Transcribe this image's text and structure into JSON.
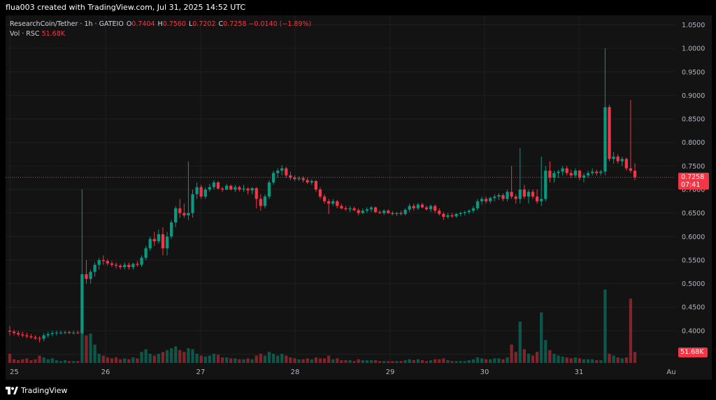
{
  "header": {
    "attribution": "flua003 created with TradingView.com, Jul 31, 2025 14:52 UTC"
  },
  "legend": {
    "symbol": "ResearchCoin/Tether · 1h · GATEIO",
    "o_label": "O",
    "o_value": "0.7404",
    "h_label": "H",
    "h_value": "0.7560",
    "l_label": "L",
    "l_value": "0.7202",
    "c_label": "C",
    "c_value": "0.7258",
    "change": "−0.0140 (−1.89%)",
    "vol_label": "Vol · RSC",
    "vol_value": "51.68K"
  },
  "price_badge": {
    "price": "0.7258",
    "countdown": "07:41"
  },
  "volume_badge": {
    "value": "51.68K"
  },
  "footer": {
    "logo_text": "TradingView"
  },
  "colors": {
    "up": "#089981",
    "down": "#f23645",
    "background": "#131313",
    "grid": "#1f1f1f"
  },
  "chart_data": {
    "type": "candlestick",
    "y_ticks": [
      "1.0500",
      "1.0000",
      "0.9500",
      "0.9000",
      "0.8500",
      "0.8000",
      "0.7500",
      "0.7000",
      "0.6500",
      "0.6000",
      "0.5500",
      "0.5000",
      "0.4500",
      "0.4000",
      "0.3500"
    ],
    "x_ticks": [
      "25",
      "26",
      "27",
      "28",
      "29",
      "30",
      "31",
      "Au"
    ],
    "ylim": [
      0.33,
      1.07
    ],
    "last_price": 0.7258,
    "grid": true,
    "series": [
      {
        "o": 0.4,
        "h": 0.41,
        "l": 0.39,
        "c": 0.398,
        "v": 10
      },
      {
        "o": 0.398,
        "h": 0.402,
        "l": 0.39,
        "c": 0.395,
        "v": 4
      },
      {
        "o": 0.395,
        "h": 0.4,
        "l": 0.388,
        "c": 0.392,
        "v": 3
      },
      {
        "o": 0.392,
        "h": 0.398,
        "l": 0.386,
        "c": 0.39,
        "v": 4
      },
      {
        "o": 0.39,
        "h": 0.396,
        "l": 0.384,
        "c": 0.388,
        "v": 5
      },
      {
        "o": 0.388,
        "h": 0.393,
        "l": 0.383,
        "c": 0.386,
        "v": 3
      },
      {
        "o": 0.386,
        "h": 0.39,
        "l": 0.38,
        "c": 0.384,
        "v": 4
      },
      {
        "o": 0.384,
        "h": 0.388,
        "l": 0.375,
        "c": 0.383,
        "v": 8
      },
      {
        "o": 0.383,
        "h": 0.395,
        "l": 0.378,
        "c": 0.39,
        "v": 6
      },
      {
        "o": 0.39,
        "h": 0.398,
        "l": 0.385,
        "c": 0.393,
        "v": 4
      },
      {
        "o": 0.393,
        "h": 0.4,
        "l": 0.388,
        "c": 0.395,
        "v": 5
      },
      {
        "o": 0.395,
        "h": 0.4,
        "l": 0.39,
        "c": 0.396,
        "v": 3
      },
      {
        "o": 0.396,
        "h": 0.4,
        "l": 0.392,
        "c": 0.396,
        "v": 2
      },
      {
        "o": 0.396,
        "h": 0.4,
        "l": 0.392,
        "c": 0.397,
        "v": 3
      },
      {
        "o": 0.397,
        "h": 0.4,
        "l": 0.393,
        "c": 0.395,
        "v": 2
      },
      {
        "o": 0.395,
        "h": 0.4,
        "l": 0.392,
        "c": 0.396,
        "v": 2
      },
      {
        "o": 0.396,
        "h": 0.4,
        "l": 0.393,
        "c": 0.395,
        "v": 2
      },
      {
        "o": 0.395,
        "h": 0.7,
        "l": 0.392,
        "c": 0.52,
        "v": 40
      },
      {
        "o": 0.52,
        "h": 0.55,
        "l": 0.5,
        "c": 0.51,
        "v": 30
      },
      {
        "o": 0.51,
        "h": 0.53,
        "l": 0.5,
        "c": 0.525,
        "v": 32
      },
      {
        "o": 0.525,
        "h": 0.545,
        "l": 0.515,
        "c": 0.54,
        "v": 20
      },
      {
        "o": 0.54,
        "h": 0.555,
        "l": 0.53,
        "c": 0.55,
        "v": 10
      },
      {
        "o": 0.55,
        "h": 0.56,
        "l": 0.54,
        "c": 0.548,
        "v": 8
      },
      {
        "o": 0.548,
        "h": 0.552,
        "l": 0.538,
        "c": 0.543,
        "v": 6
      },
      {
        "o": 0.543,
        "h": 0.548,
        "l": 0.535,
        "c": 0.54,
        "v": 5
      },
      {
        "o": 0.54,
        "h": 0.545,
        "l": 0.532,
        "c": 0.538,
        "v": 6
      },
      {
        "o": 0.538,
        "h": 0.542,
        "l": 0.53,
        "c": 0.535,
        "v": 4
      },
      {
        "o": 0.535,
        "h": 0.545,
        "l": 0.53,
        "c": 0.54,
        "v": 5
      },
      {
        "o": 0.54,
        "h": 0.545,
        "l": 0.53,
        "c": 0.535,
        "v": 4
      },
      {
        "o": 0.535,
        "h": 0.545,
        "l": 0.53,
        "c": 0.542,
        "v": 6
      },
      {
        "o": 0.542,
        "h": 0.548,
        "l": 0.536,
        "c": 0.54,
        "v": 5
      },
      {
        "o": 0.54,
        "h": 0.56,
        "l": 0.536,
        "c": 0.555,
        "v": 12
      },
      {
        "o": 0.555,
        "h": 0.58,
        "l": 0.55,
        "c": 0.575,
        "v": 15
      },
      {
        "o": 0.575,
        "h": 0.6,
        "l": 0.57,
        "c": 0.595,
        "v": 10
      },
      {
        "o": 0.595,
        "h": 0.61,
        "l": 0.58,
        "c": 0.59,
        "v": 8
      },
      {
        "o": 0.59,
        "h": 0.615,
        "l": 0.585,
        "c": 0.605,
        "v": 10
      },
      {
        "o": 0.605,
        "h": 0.62,
        "l": 0.56,
        "c": 0.575,
        "v": 12
      },
      {
        "o": 0.575,
        "h": 0.61,
        "l": 0.56,
        "c": 0.6,
        "v": 14
      },
      {
        "o": 0.6,
        "h": 0.635,
        "l": 0.595,
        "c": 0.63,
        "v": 16
      },
      {
        "o": 0.63,
        "h": 0.665,
        "l": 0.62,
        "c": 0.66,
        "v": 18
      },
      {
        "o": 0.66,
        "h": 0.68,
        "l": 0.64,
        "c": 0.65,
        "v": 14
      },
      {
        "o": 0.65,
        "h": 0.67,
        "l": 0.64,
        "c": 0.645,
        "v": 12
      },
      {
        "o": 0.645,
        "h": 0.76,
        "l": 0.635,
        "c": 0.65,
        "v": 16
      },
      {
        "o": 0.65,
        "h": 0.7,
        "l": 0.64,
        "c": 0.69,
        "v": 15
      },
      {
        "o": 0.69,
        "h": 0.715,
        "l": 0.68,
        "c": 0.705,
        "v": 10
      },
      {
        "o": 0.705,
        "h": 0.71,
        "l": 0.68,
        "c": 0.685,
        "v": 8
      },
      {
        "o": 0.685,
        "h": 0.705,
        "l": 0.68,
        "c": 0.7,
        "v": 7
      },
      {
        "o": 0.7,
        "h": 0.712,
        "l": 0.695,
        "c": 0.705,
        "v": 8
      },
      {
        "o": 0.705,
        "h": 0.72,
        "l": 0.7,
        "c": 0.715,
        "v": 10
      },
      {
        "o": 0.715,
        "h": 0.718,
        "l": 0.7,
        "c": 0.702,
        "v": 9
      },
      {
        "o": 0.702,
        "h": 0.705,
        "l": 0.695,
        "c": 0.7,
        "v": 6
      },
      {
        "o": 0.7,
        "h": 0.712,
        "l": 0.698,
        "c": 0.708,
        "v": 6
      },
      {
        "o": 0.708,
        "h": 0.71,
        "l": 0.698,
        "c": 0.7,
        "v": 5
      },
      {
        "o": 0.7,
        "h": 0.71,
        "l": 0.695,
        "c": 0.705,
        "v": 5
      },
      {
        "o": 0.705,
        "h": 0.708,
        "l": 0.696,
        "c": 0.7,
        "v": 4
      },
      {
        "o": 0.7,
        "h": 0.71,
        "l": 0.695,
        "c": 0.702,
        "v": 4
      },
      {
        "o": 0.702,
        "h": 0.705,
        "l": 0.69,
        "c": 0.698,
        "v": 5
      },
      {
        "o": 0.698,
        "h": 0.705,
        "l": 0.69,
        "c": 0.703,
        "v": 4
      },
      {
        "o": 0.703,
        "h": 0.705,
        "l": 0.66,
        "c": 0.68,
        "v": 8
      },
      {
        "o": 0.68,
        "h": 0.69,
        "l": 0.655,
        "c": 0.665,
        "v": 10
      },
      {
        "o": 0.665,
        "h": 0.69,
        "l": 0.66,
        "c": 0.685,
        "v": 8
      },
      {
        "o": 0.685,
        "h": 0.72,
        "l": 0.68,
        "c": 0.715,
        "v": 12
      },
      {
        "o": 0.715,
        "h": 0.74,
        "l": 0.71,
        "c": 0.735,
        "v": 10
      },
      {
        "o": 0.735,
        "h": 0.745,
        "l": 0.725,
        "c": 0.74,
        "v": 8
      },
      {
        "o": 0.74,
        "h": 0.752,
        "l": 0.73,
        "c": 0.745,
        "v": 10
      },
      {
        "o": 0.745,
        "h": 0.748,
        "l": 0.725,
        "c": 0.73,
        "v": 8
      },
      {
        "o": 0.73,
        "h": 0.738,
        "l": 0.72,
        "c": 0.725,
        "v": 6
      },
      {
        "o": 0.725,
        "h": 0.73,
        "l": 0.718,
        "c": 0.722,
        "v": 5
      },
      {
        "o": 0.722,
        "h": 0.728,
        "l": 0.718,
        "c": 0.724,
        "v": 4
      },
      {
        "o": 0.724,
        "h": 0.728,
        "l": 0.715,
        "c": 0.72,
        "v": 4
      },
      {
        "o": 0.72,
        "h": 0.725,
        "l": 0.712,
        "c": 0.715,
        "v": 5
      },
      {
        "o": 0.715,
        "h": 0.722,
        "l": 0.71,
        "c": 0.718,
        "v": 4
      },
      {
        "o": 0.718,
        "h": 0.72,
        "l": 0.695,
        "c": 0.7,
        "v": 6
      },
      {
        "o": 0.7,
        "h": 0.705,
        "l": 0.68,
        "c": 0.685,
        "v": 5
      },
      {
        "o": 0.685,
        "h": 0.69,
        "l": 0.67,
        "c": 0.675,
        "v": 5
      },
      {
        "o": 0.675,
        "h": 0.68,
        "l": 0.648,
        "c": 0.67,
        "v": 8
      },
      {
        "o": 0.67,
        "h": 0.68,
        "l": 0.665,
        "c": 0.675,
        "v": 4
      },
      {
        "o": 0.675,
        "h": 0.678,
        "l": 0.66,
        "c": 0.665,
        "v": 5
      },
      {
        "o": 0.665,
        "h": 0.67,
        "l": 0.658,
        "c": 0.66,
        "v": 3
      },
      {
        "o": 0.66,
        "h": 0.665,
        "l": 0.655,
        "c": 0.658,
        "v": 3
      },
      {
        "o": 0.658,
        "h": 0.665,
        "l": 0.652,
        "c": 0.66,
        "v": 3
      },
      {
        "o": 0.66,
        "h": 0.664,
        "l": 0.654,
        "c": 0.656,
        "v": 2
      },
      {
        "o": 0.656,
        "h": 0.66,
        "l": 0.645,
        "c": 0.65,
        "v": 4
      },
      {
        "o": 0.65,
        "h": 0.66,
        "l": 0.648,
        "c": 0.655,
        "v": 3
      },
      {
        "o": 0.655,
        "h": 0.662,
        "l": 0.65,
        "c": 0.658,
        "v": 3
      },
      {
        "o": 0.658,
        "h": 0.665,
        "l": 0.652,
        "c": 0.662,
        "v": 3
      },
      {
        "o": 0.662,
        "h": 0.664,
        "l": 0.65,
        "c": 0.652,
        "v": 3
      },
      {
        "o": 0.652,
        "h": 0.656,
        "l": 0.648,
        "c": 0.65,
        "v": 2
      },
      {
        "o": 0.65,
        "h": 0.658,
        "l": 0.646,
        "c": 0.655,
        "v": 2
      },
      {
        "o": 0.655,
        "h": 0.658,
        "l": 0.648,
        "c": 0.65,
        "v": 2
      },
      {
        "o": 0.65,
        "h": 0.654,
        "l": 0.645,
        "c": 0.648,
        "v": 2
      },
      {
        "o": 0.648,
        "h": 0.652,
        "l": 0.644,
        "c": 0.65,
        "v": 2
      },
      {
        "o": 0.65,
        "h": 0.655,
        "l": 0.645,
        "c": 0.648,
        "v": 2
      },
      {
        "o": 0.648,
        "h": 0.66,
        "l": 0.645,
        "c": 0.657,
        "v": 3
      },
      {
        "o": 0.657,
        "h": 0.67,
        "l": 0.652,
        "c": 0.665,
        "v": 4
      },
      {
        "o": 0.665,
        "h": 0.67,
        "l": 0.655,
        "c": 0.66,
        "v": 3
      },
      {
        "o": 0.66,
        "h": 0.672,
        "l": 0.656,
        "c": 0.668,
        "v": 4
      },
      {
        "o": 0.668,
        "h": 0.672,
        "l": 0.66,
        "c": 0.662,
        "v": 3
      },
      {
        "o": 0.662,
        "h": 0.666,
        "l": 0.655,
        "c": 0.658,
        "v": 2
      },
      {
        "o": 0.658,
        "h": 0.668,
        "l": 0.652,
        "c": 0.665,
        "v": 3
      },
      {
        "o": 0.665,
        "h": 0.668,
        "l": 0.65,
        "c": 0.655,
        "v": 4
      },
      {
        "o": 0.655,
        "h": 0.66,
        "l": 0.645,
        "c": 0.648,
        "v": 4
      },
      {
        "o": 0.648,
        "h": 0.652,
        "l": 0.635,
        "c": 0.642,
        "v": 5
      },
      {
        "o": 0.642,
        "h": 0.65,
        "l": 0.638,
        "c": 0.645,
        "v": 3
      },
      {
        "o": 0.645,
        "h": 0.65,
        "l": 0.64,
        "c": 0.643,
        "v": 2
      },
      {
        "o": 0.643,
        "h": 0.65,
        "l": 0.64,
        "c": 0.648,
        "v": 2
      },
      {
        "o": 0.648,
        "h": 0.653,
        "l": 0.643,
        "c": 0.65,
        "v": 2
      },
      {
        "o": 0.65,
        "h": 0.655,
        "l": 0.645,
        "c": 0.652,
        "v": 2
      },
      {
        "o": 0.652,
        "h": 0.658,
        "l": 0.648,
        "c": 0.655,
        "v": 3
      },
      {
        "o": 0.655,
        "h": 0.665,
        "l": 0.65,
        "c": 0.66,
        "v": 4
      },
      {
        "o": 0.66,
        "h": 0.68,
        "l": 0.655,
        "c": 0.675,
        "v": 6
      },
      {
        "o": 0.675,
        "h": 0.685,
        "l": 0.668,
        "c": 0.68,
        "v": 5
      },
      {
        "o": 0.68,
        "h": 0.685,
        "l": 0.67,
        "c": 0.675,
        "v": 4
      },
      {
        "o": 0.675,
        "h": 0.685,
        "l": 0.67,
        "c": 0.682,
        "v": 4
      },
      {
        "o": 0.682,
        "h": 0.69,
        "l": 0.675,
        "c": 0.685,
        "v": 5
      },
      {
        "o": 0.685,
        "h": 0.692,
        "l": 0.678,
        "c": 0.688,
        "v": 5
      },
      {
        "o": 0.688,
        "h": 0.692,
        "l": 0.675,
        "c": 0.68,
        "v": 4
      },
      {
        "o": 0.68,
        "h": 0.7,
        "l": 0.675,
        "c": 0.695,
        "v": 6
      },
      {
        "o": 0.695,
        "h": 0.75,
        "l": 0.68,
        "c": 0.685,
        "v": 20
      },
      {
        "o": 0.685,
        "h": 0.69,
        "l": 0.67,
        "c": 0.68,
        "v": 12
      },
      {
        "o": 0.68,
        "h": 0.788,
        "l": 0.67,
        "c": 0.7,
        "v": 45
      },
      {
        "o": 0.7,
        "h": 0.71,
        "l": 0.68,
        "c": 0.685,
        "v": 15
      },
      {
        "o": 0.685,
        "h": 0.7,
        "l": 0.67,
        "c": 0.695,
        "v": 10
      },
      {
        "o": 0.695,
        "h": 0.7,
        "l": 0.68,
        "c": 0.685,
        "v": 8
      },
      {
        "o": 0.685,
        "h": 0.7,
        "l": 0.67,
        "c": 0.675,
        "v": 12
      },
      {
        "o": 0.675,
        "h": 0.77,
        "l": 0.665,
        "c": 0.68,
        "v": 55
      },
      {
        "o": 0.68,
        "h": 0.75,
        "l": 0.675,
        "c": 0.74,
        "v": 25
      },
      {
        "o": 0.74,
        "h": 0.76,
        "l": 0.715,
        "c": 0.725,
        "v": 14
      },
      {
        "o": 0.725,
        "h": 0.74,
        "l": 0.715,
        "c": 0.735,
        "v": 10
      },
      {
        "o": 0.735,
        "h": 0.742,
        "l": 0.725,
        "c": 0.738,
        "v": 8
      },
      {
        "o": 0.738,
        "h": 0.75,
        "l": 0.73,
        "c": 0.745,
        "v": 7
      },
      {
        "o": 0.745,
        "h": 0.75,
        "l": 0.73,
        "c": 0.735,
        "v": 6
      },
      {
        "o": 0.735,
        "h": 0.742,
        "l": 0.725,
        "c": 0.73,
        "v": 5
      },
      {
        "o": 0.73,
        "h": 0.745,
        "l": 0.725,
        "c": 0.74,
        "v": 6
      },
      {
        "o": 0.74,
        "h": 0.742,
        "l": 0.72,
        "c": 0.725,
        "v": 5
      },
      {
        "o": 0.725,
        "h": 0.735,
        "l": 0.715,
        "c": 0.73,
        "v": 4
      },
      {
        "o": 0.73,
        "h": 0.74,
        "l": 0.725,
        "c": 0.735,
        "v": 4
      },
      {
        "o": 0.735,
        "h": 0.745,
        "l": 0.73,
        "c": 0.738,
        "v": 4
      },
      {
        "o": 0.738,
        "h": 0.742,
        "l": 0.73,
        "c": 0.735,
        "v": 3
      },
      {
        "o": 0.735,
        "h": 0.742,
        "l": 0.73,
        "c": 0.738,
        "v": 3
      },
      {
        "o": 0.738,
        "h": 1.0,
        "l": 0.73,
        "c": 0.875,
        "v": 80
      },
      {
        "o": 0.875,
        "h": 0.88,
        "l": 0.76,
        "c": 0.765,
        "v": 10
      },
      {
        "o": 0.765,
        "h": 0.78,
        "l": 0.755,
        "c": 0.77,
        "v": 8
      },
      {
        "o": 0.77,
        "h": 0.775,
        "l": 0.755,
        "c": 0.76,
        "v": 6
      },
      {
        "o": 0.76,
        "h": 0.77,
        "l": 0.75,
        "c": 0.765,
        "v": 5
      },
      {
        "o": 0.765,
        "h": 0.768,
        "l": 0.74,
        "c": 0.745,
        "v": 6
      },
      {
        "o": 0.745,
        "h": 0.89,
        "l": 0.735,
        "c": 0.74,
        "v": 70
      },
      {
        "o": 0.74,
        "h": 0.756,
        "l": 0.72,
        "c": 0.726,
        "v": 12
      }
    ]
  }
}
